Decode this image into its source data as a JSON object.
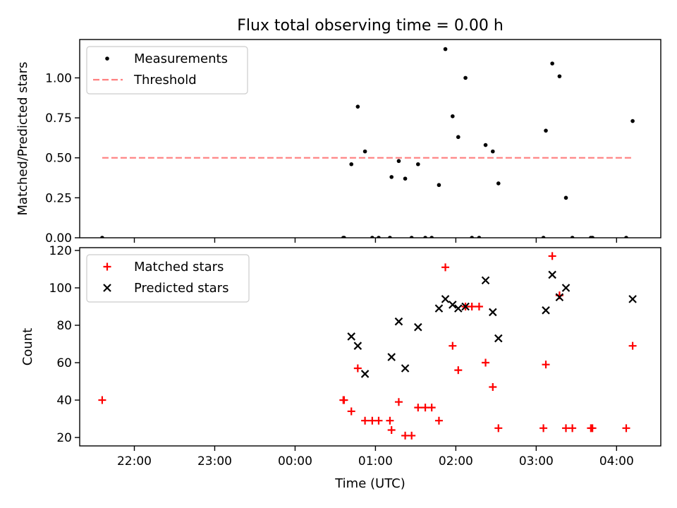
{
  "figure": {
    "title": "Flux total observing time = 0.00 h",
    "xlabel": "Time (UTC)"
  },
  "chart_data": [
    {
      "type": "scatter",
      "title": "Flux total observing time = 0.00 h",
      "ylabel": "Matched/Predicted stars",
      "xlabel": "Time (UTC)",
      "x_unit": "hours since 00:00 UTC",
      "xlim": [
        -2.68,
        4.55
      ],
      "ylim": [
        0.0,
        1.24
      ],
      "xticks": [
        -2,
        -1,
        0,
        1,
        2,
        3,
        4
      ],
      "xtick_labels": [
        "22:00",
        "23:00",
        "00:00",
        "01:00",
        "02:00",
        "03:00",
        "04:00"
      ],
      "yticks": [
        0.0,
        0.25,
        0.5,
        0.75,
        1.0
      ],
      "ytick_labels": [
        "0.00",
        "0.25",
        "0.50",
        "0.75",
        "1.00"
      ],
      "legend_position": "upper-left",
      "series": [
        {
          "name": "Measurements",
          "marker": "dot",
          "color": "#000000",
          "points": [
            [
              -2.4,
              0.0
            ],
            [
              0.6,
              0.0
            ],
            [
              0.61,
              0.0
            ],
            [
              0.7,
              0.46
            ],
            [
              0.78,
              0.82
            ],
            [
              0.87,
              0.54
            ],
            [
              0.96,
              0.0
            ],
            [
              1.04,
              0.0
            ],
            [
              1.18,
              0.0
            ],
            [
              1.2,
              0.38
            ],
            [
              1.29,
              0.48
            ],
            [
              1.37,
              0.37
            ],
            [
              1.45,
              0.0
            ],
            [
              1.53,
              0.46
            ],
            [
              1.62,
              0.0
            ],
            [
              1.7,
              0.0
            ],
            [
              1.79,
              0.33
            ],
            [
              1.87,
              1.18
            ],
            [
              1.96,
              0.76
            ],
            [
              2.03,
              0.63
            ],
            [
              2.12,
              1.0
            ],
            [
              2.2,
              0.0
            ],
            [
              2.29,
              0.0
            ],
            [
              2.37,
              0.58
            ],
            [
              2.46,
              0.54
            ],
            [
              2.53,
              0.34
            ],
            [
              3.09,
              0.0
            ],
            [
              3.12,
              0.67
            ],
            [
              3.2,
              1.09
            ],
            [
              3.29,
              1.01
            ],
            [
              3.37,
              0.25
            ],
            [
              3.45,
              0.0
            ],
            [
              3.68,
              0.0
            ],
            [
              3.7,
              0.0
            ],
            [
              4.12,
              0.0
            ],
            [
              4.2,
              0.73
            ]
          ]
        },
        {
          "name": "Threshold",
          "marker": "dashed-line",
          "color": "#ff7f7f",
          "points": [
            [
              -2.4,
              0.5
            ],
            [
              4.2,
              0.5
            ]
          ]
        }
      ]
    },
    {
      "type": "scatter",
      "ylabel": "Count",
      "xlabel": "Time (UTC)",
      "x_unit": "hours since 00:00 UTC",
      "xlim": [
        -2.68,
        4.55
      ],
      "ylim": [
        15.5,
        121.5
      ],
      "xticks": [
        -2,
        -1,
        0,
        1,
        2,
        3,
        4
      ],
      "xtick_labels": [
        "22:00",
        "23:00",
        "00:00",
        "01:00",
        "02:00",
        "03:00",
        "04:00"
      ],
      "yticks": [
        20,
        40,
        60,
        80,
        100,
        120
      ],
      "ytick_labels": [
        "20",
        "40",
        "60",
        "80",
        "100",
        "120"
      ],
      "legend_position": "upper-left",
      "series": [
        {
          "name": "Matched stars",
          "marker": "plus",
          "color": "#ff0000",
          "points": [
            [
              -2.4,
              40
            ],
            [
              0.6,
              40
            ],
            [
              0.61,
              40
            ],
            [
              0.7,
              34
            ],
            [
              0.78,
              57
            ],
            [
              0.87,
              29
            ],
            [
              0.96,
              29
            ],
            [
              1.04,
              29
            ],
            [
              1.18,
              29
            ],
            [
              1.2,
              24
            ],
            [
              1.29,
              39
            ],
            [
              1.37,
              21
            ],
            [
              1.45,
              21
            ],
            [
              1.53,
              36
            ],
            [
              1.62,
              36
            ],
            [
              1.7,
              36
            ],
            [
              1.79,
              29
            ],
            [
              1.87,
              111
            ],
            [
              1.96,
              69
            ],
            [
              2.03,
              56
            ],
            [
              2.12,
              90
            ],
            [
              2.2,
              90
            ],
            [
              2.29,
              90
            ],
            [
              2.37,
              60
            ],
            [
              2.46,
              47
            ],
            [
              2.53,
              25
            ],
            [
              3.09,
              25
            ],
            [
              3.12,
              59
            ],
            [
              3.2,
              117
            ],
            [
              3.29,
              96
            ],
            [
              3.37,
              25
            ],
            [
              3.45,
              25
            ],
            [
              3.68,
              25
            ],
            [
              3.7,
              25
            ],
            [
              4.12,
              25
            ],
            [
              4.2,
              69
            ]
          ]
        },
        {
          "name": "Predicted stars",
          "marker": "x",
          "color": "#000000",
          "points": [
            [
              0.7,
              74
            ],
            [
              0.78,
              69
            ],
            [
              0.87,
              54
            ],
            [
              1.2,
              63
            ],
            [
              1.29,
              82
            ],
            [
              1.37,
              57
            ],
            [
              1.53,
              79
            ],
            [
              1.79,
              89
            ],
            [
              1.87,
              94
            ],
            [
              1.96,
              91
            ],
            [
              2.03,
              89
            ],
            [
              2.12,
              90
            ],
            [
              2.37,
              104
            ],
            [
              2.46,
              87
            ],
            [
              2.53,
              73
            ],
            [
              3.12,
              88
            ],
            [
              3.2,
              107
            ],
            [
              3.29,
              95
            ],
            [
              3.37,
              100
            ],
            [
              4.2,
              94
            ]
          ]
        }
      ]
    }
  ]
}
